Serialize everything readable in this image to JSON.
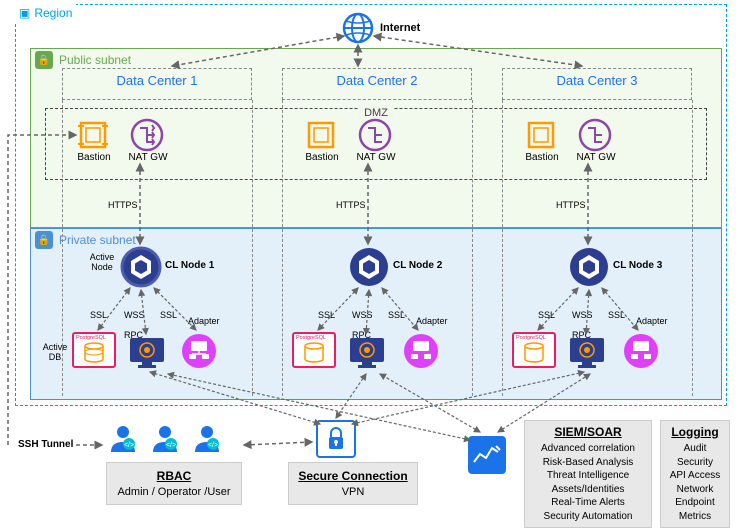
{
  "colors": {
    "region_border": "#00a0e0",
    "public_border": "#6aa84f",
    "private_border": "#4a90d9",
    "dc_title": "#1a73e8",
    "bastion": "#ff9900",
    "natgw": "#8e44ad",
    "clnode": "#2c3e8f",
    "postgres": "#e91e63",
    "adapter": "#e040fb",
    "rbac": "#1a73e8",
    "vpn_box": "#1a73e8",
    "siem_icon": "#1a73e8",
    "info_bg": "#e8e8e8",
    "arrow": "#666666"
  },
  "region": {
    "label": "Region"
  },
  "internet": {
    "label": "Internet"
  },
  "public_subnet": {
    "label": "Public subnet"
  },
  "private_subnet": {
    "label": "Private subnet"
  },
  "dmz": {
    "label": "DMZ"
  },
  "datacenters": [
    {
      "title": "Data Center 1",
      "bastion": "Bastion",
      "nat": "NAT GW",
      "https": "HTTPS",
      "active_node": "Active\nNode",
      "cl": "CL Node 1",
      "ssl1": "SSL",
      "wss": "WSS",
      "rpc": "RPC",
      "ssl2": "SSL",
      "adapter": "Adapter",
      "pg": "PostgreSQL",
      "active_db": "Active\nDB"
    },
    {
      "title": "Data Center 2",
      "bastion": "Bastion",
      "nat": "NAT GW",
      "https": "HTTPS",
      "cl": "CL Node 2",
      "ssl1": "SSL",
      "wss": "WSS",
      "rpc": "RPC",
      "ssl2": "SSL",
      "adapter": "Adapter",
      "pg": "PostgreSQL"
    },
    {
      "title": "Data Center 3",
      "bastion": "Bastion",
      "nat": "NAT GW",
      "https": "HTTPS",
      "cl": "CL Node 3",
      "ssl1": "SSL",
      "wss": "WSS",
      "rpc": "RPC",
      "ssl2": "SSL",
      "adapter": "Adapter",
      "pg": "PostgreSQL"
    }
  ],
  "ssh": {
    "label": "SSH Tunnel"
  },
  "rbac": {
    "title": "RBAC",
    "sub": "Admin / Operator /User"
  },
  "vpn": {
    "title": "Secure Connection",
    "sub": "VPN"
  },
  "siem": {
    "title": "SIEM/SOAR",
    "items": [
      "Advanced correlation",
      "Risk-Based Analysis",
      "Threat Intelligence",
      "Assets/Identities",
      "Real-Time Alerts",
      "Security Automation"
    ]
  },
  "logging": {
    "title": "Logging",
    "items": [
      "Audit",
      "Security",
      "API Access",
      "Network",
      "Endpoint",
      "Metrics"
    ]
  }
}
